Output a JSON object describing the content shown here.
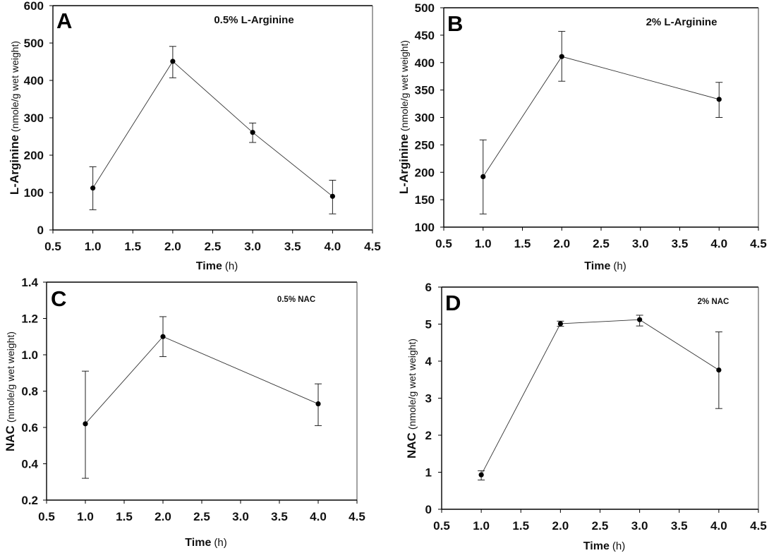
{
  "figure": {
    "panels": [
      "A",
      "B",
      "C",
      "D"
    ]
  },
  "chart_data": [
    {
      "id": "A",
      "type": "line",
      "panel_label": "A",
      "title": "0.5% L-Arginine",
      "xlabel_bold": "Time",
      "xlabel_unit": "(h)",
      "ylabel_bold": "L-Arginine",
      "ylabel_unit": "(nmole/g wet weight)",
      "xlim": [
        0.5,
        4.5
      ],
      "ylim": [
        0,
        600
      ],
      "xticks": [
        0.5,
        1.0,
        1.5,
        2.0,
        2.5,
        3.0,
        3.5,
        4.0,
        4.5
      ],
      "xtick_labels": [
        "0.5",
        "1.0",
        "1.5",
        "2.0",
        "2.5",
        "3.0",
        "3.5",
        "4.0",
        "4.5"
      ],
      "yticks": [
        0,
        100,
        200,
        300,
        400,
        500,
        600
      ],
      "ytick_labels": [
        "0",
        "100",
        "200",
        "300",
        "400",
        "500",
        "600"
      ],
      "grid": false,
      "series": [
        {
          "name": "0.5% L-Arginine",
          "x": [
            1,
            2,
            3,
            4
          ],
          "y": [
            112,
            451,
            261,
            90
          ],
          "err_low": [
            54,
            407,
            234,
            43
          ],
          "err_high": [
            169,
            491,
            286,
            133
          ]
        }
      ]
    },
    {
      "id": "B",
      "type": "line",
      "panel_label": "B",
      "title": "2% L-Arginine",
      "xlabel_bold": "Time",
      "xlabel_unit": "(h)",
      "ylabel_bold": "L-Arginine",
      "ylabel_unit": "(nmole/g wet weight)",
      "xlim": [
        0.5,
        4.5
      ],
      "ylim": [
        100,
        500
      ],
      "xticks": [
        0.5,
        1.0,
        1.5,
        2.0,
        2.5,
        3.0,
        3.5,
        4.0,
        4.5
      ],
      "xtick_labels": [
        "0.5",
        "1.0",
        "1.5",
        "2.0",
        "2.5",
        "3.0",
        "3.5",
        "4.0",
        "4.5"
      ],
      "yticks": [
        100,
        150,
        200,
        250,
        300,
        350,
        400,
        450,
        500
      ],
      "ytick_labels": [
        "100",
        "150",
        "200",
        "250",
        "300",
        "350",
        "400",
        "450",
        "500"
      ],
      "grid": false,
      "series": [
        {
          "name": "2% L-Arginine",
          "x": [
            1,
            2,
            4
          ],
          "y": [
            192,
            411,
            333
          ],
          "err_low": [
            124,
            366,
            300
          ],
          "err_high": [
            259,
            457,
            364
          ]
        }
      ]
    },
    {
      "id": "C",
      "type": "line",
      "panel_label": "C",
      "title": "0.5% NAC",
      "xlabel_bold": "Time",
      "xlabel_unit": "(h)",
      "ylabel_bold": "NAC",
      "ylabel_unit": "(nmole/g wet weight)",
      "xlim": [
        0.5,
        4.5
      ],
      "ylim": [
        0.2,
        1.4
      ],
      "xticks": [
        0.5,
        1.0,
        1.5,
        2.0,
        2.5,
        3.0,
        3.5,
        4.0,
        4.5
      ],
      "xtick_labels": [
        "0.5",
        "1.0",
        "1.5",
        "2.0",
        "2.5",
        "3.0",
        "3.5",
        "4.0",
        "4.5"
      ],
      "yticks": [
        0.2,
        0.4,
        0.6,
        0.8,
        1.0,
        1.2,
        1.4
      ],
      "ytick_labels": [
        "0.2",
        "0.4",
        "0.6",
        "0.8",
        "1.0",
        "1.2",
        "1.4"
      ],
      "grid": false,
      "series": [
        {
          "name": "0.5% NAC",
          "x": [
            1,
            2,
            4
          ],
          "y": [
            0.62,
            1.1,
            0.73
          ],
          "err_low": [
            0.32,
            0.99,
            0.61
          ],
          "err_high": [
            0.91,
            1.21,
            0.84
          ]
        }
      ]
    },
    {
      "id": "D",
      "type": "line",
      "panel_label": "D",
      "title": "2% NAC",
      "xlabel_bold": "Time",
      "xlabel_unit": "(h)",
      "ylabel_bold": "NAC",
      "ylabel_unit": "(nmole/g wet weight)",
      "xlim": [
        0.5,
        4.5
      ],
      "ylim": [
        0,
        6
      ],
      "xticks": [
        0.5,
        1.0,
        1.5,
        2.0,
        2.5,
        3.0,
        3.5,
        4.0,
        4.5
      ],
      "xtick_labels": [
        "0.5",
        "1.0",
        "1.5",
        "2.0",
        "2.5",
        "3.0",
        "3.5",
        "4.0",
        "4.5"
      ],
      "yticks": [
        0,
        1,
        2,
        3,
        4,
        5,
        6
      ],
      "ytick_labels": [
        "0",
        "1",
        "2",
        "3",
        "4",
        "5",
        "6"
      ],
      "grid": false,
      "series": [
        {
          "name": "2% NAC",
          "x": [
            1,
            2,
            3,
            4
          ],
          "y": [
            0.93,
            5.01,
            5.12,
            3.76
          ],
          "err_low": [
            0.79,
            4.94,
            4.95,
            2.72
          ],
          "err_high": [
            1.04,
            5.08,
            5.24,
            4.79
          ]
        }
      ]
    }
  ]
}
